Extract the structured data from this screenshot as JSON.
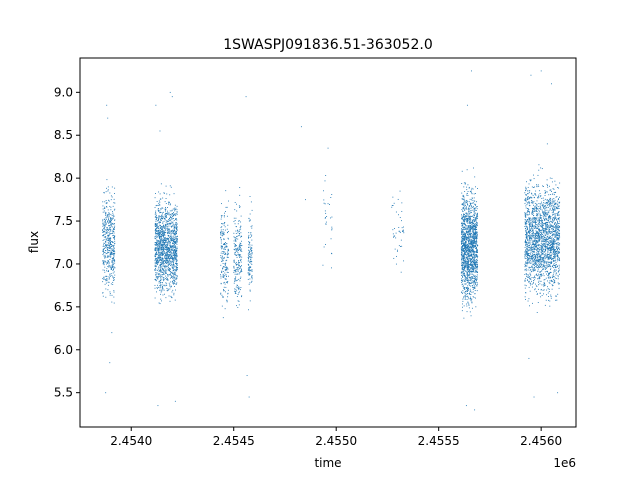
{
  "chart_data": {
    "type": "scatter",
    "title": "1SWASPJ091836.51-363052.0",
    "xlabel": "time",
    "ylabel": "flux",
    "x_offset_label": "1e6",
    "x_scale": 1000000,
    "xlim": [
      2453750,
      2456170
    ],
    "ylim": [
      5.1,
      9.4
    ],
    "x_ticks": [
      2454000,
      2454500,
      2455000,
      2455500,
      2456000
    ],
    "x_tick_labels": [
      "2.4540",
      "2.4545",
      "2.4550",
      "2.4555",
      "2.4560"
    ],
    "y_ticks": [
      5.5,
      6.0,
      6.5,
      7.0,
      7.5,
      8.0,
      8.5,
      9.0
    ],
    "y_tick_labels": [
      "5.5",
      "6.0",
      "6.5",
      "7.0",
      "7.5",
      "8.0",
      "8.5",
      "9.0"
    ],
    "grid": false,
    "marker_color": "#1f77b4",
    "clusters": [
      {
        "x_start": 2453860,
        "x_end": 2453920,
        "center": 7.25,
        "spread": 0.55,
        "count": 500
      },
      {
        "x_start": 2454115,
        "x_end": 2454225,
        "center": 7.2,
        "spread": 0.5,
        "count": 1400
      },
      {
        "x_start": 2454435,
        "x_end": 2454475,
        "center": 7.1,
        "spread": 0.55,
        "count": 200
      },
      {
        "x_start": 2454500,
        "x_end": 2454540,
        "center": 7.1,
        "spread": 0.55,
        "count": 220
      },
      {
        "x_start": 2454570,
        "x_end": 2454590,
        "center": 7.1,
        "spread": 0.55,
        "count": 120
      },
      {
        "x_start": 2454935,
        "x_end": 2454980,
        "center": 7.5,
        "spread": 0.5,
        "count": 30
      },
      {
        "x_start": 2455270,
        "x_end": 2455330,
        "center": 7.4,
        "spread": 0.45,
        "count": 45
      },
      {
        "x_start": 2455610,
        "x_end": 2455690,
        "center": 7.2,
        "spread": 0.6,
        "count": 1500
      },
      {
        "x_start": 2455920,
        "x_end": 2456090,
        "center": 7.3,
        "spread": 0.6,
        "count": 2000
      }
    ],
    "outliers": [
      [
        2453880,
        8.85
      ],
      [
        2453885,
        8.7
      ],
      [
        2453895,
        5.85
      ],
      [
        2453875,
        5.5
      ],
      [
        2453905,
        6.2
      ],
      [
        2454120,
        8.85
      ],
      [
        2454130,
        5.35
      ],
      [
        2454190,
        9.0
      ],
      [
        2454200,
        8.95
      ],
      [
        2454215,
        5.4
      ],
      [
        2454140,
        8.55
      ],
      [
        2454560,
        8.95
      ],
      [
        2454575,
        5.45
      ],
      [
        2454565,
        5.7
      ],
      [
        2454830,
        8.6
      ],
      [
        2454850,
        7.75
      ],
      [
        2454960,
        8.35
      ],
      [
        2455635,
        5.35
      ],
      [
        2455660,
        9.25
      ],
      [
        2455675,
        5.3
      ],
      [
        2455640,
        8.85
      ],
      [
        2455950,
        9.2
      ],
      [
        2455965,
        5.45
      ],
      [
        2456000,
        9.25
      ],
      [
        2456050,
        9.1
      ],
      [
        2456080,
        5.5
      ],
      [
        2456030,
        8.4
      ],
      [
        2455940,
        5.9
      ]
    ]
  }
}
